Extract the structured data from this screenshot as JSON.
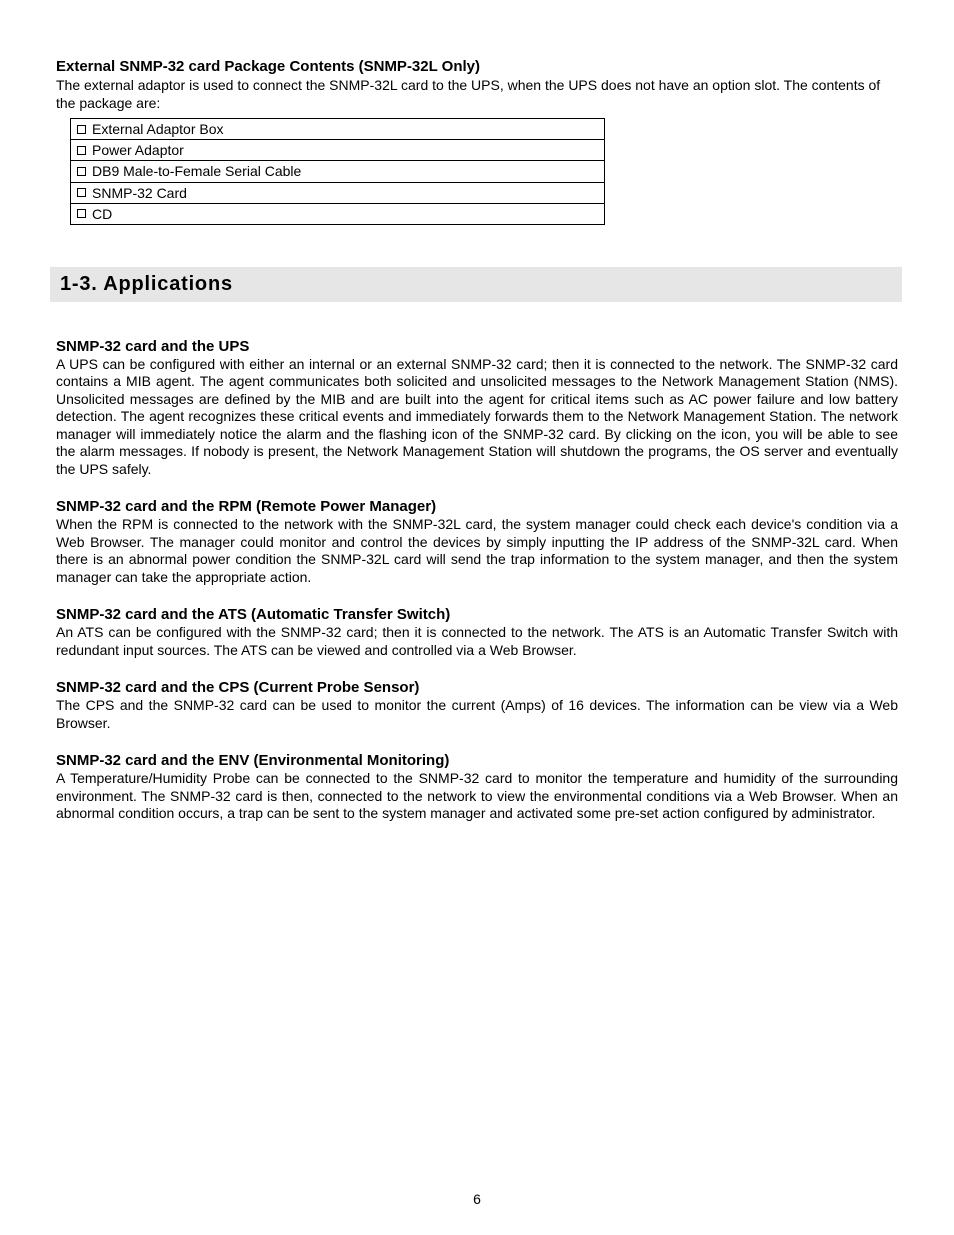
{
  "pageNumber": "6",
  "top": {
    "heading": "External SNMP-32 card Package Contents (SNMP-32L Only)",
    "intro": "The external adaptor is used to connect the SNMP-32L card to the UPS, when the UPS does not have an option slot.  The contents of the package are:",
    "items": [
      "External Adaptor Box",
      "Power Adaptor",
      "DB9 Male-to-Female Serial Cable",
      "SNMP-32 Card",
      "CD"
    ]
  },
  "sectionBar": "1-3.  Applications",
  "sections": [
    {
      "heading": "SNMP-32 card and the UPS",
      "body": "A UPS can be configured with either an internal or an external SNMP-32 card; then it is connected to the network.  The SNMP-32 card contains a MIB agent.  The agent communicates both solicited and unsolicited messages to the Network Management Station (NMS).  Unsolicited messages are defined by the MIB and are built into the agent for critical items such as AC power failure and low battery detection.  The agent recognizes these critical events and immediately forwards them to the Network Management Station.  The network manager will immediately notice the alarm and the flashing icon of the SNMP-32 card.  By clicking on the icon, you will be able to see the alarm messages.  If nobody is present, the Network Management Station will shutdown the programs, the OS server and eventually the UPS safely."
    },
    {
      "heading": "SNMP-32 card and the RPM (Remote Power Manager)",
      "body": "When the RPM is connected to the network with the SNMP-32L card, the system manager could check each device's condition via a Web Browser.  The manager could monitor and control the devices by simply inputting the IP address of the SNMP-32L card.  When there is an abnormal power condition the SNMP-32L card will send the trap information to the system manager, and then the system manager can take the appropriate action."
    },
    {
      "heading": "SNMP-32 card and the ATS (Automatic Transfer Switch)",
      "body": "An ATS can be configured with the SNMP-32 card; then it is connected to the network.  The ATS is an Automatic Transfer Switch with redundant input sources.  The ATS can be viewed and controlled via a Web Browser."
    },
    {
      "heading": "SNMP-32 card and the CPS (Current Probe Sensor)",
      "body": "The CPS and the SNMP-32 card can be used to monitor the current (Amps) of 16 devices.  The information can be view via a Web Browser."
    },
    {
      "heading": "SNMP-32 card and the ENV (Environmental Monitoring)",
      "body": "A Temperature/Humidity Probe can be connected to the SNMP-32 card to monitor the temperature and humidity of the surrounding environment.  The SNMP-32 card is then, connected to the network to view the environmental conditions via a Web Browser.  When an abnormal condition occurs, a trap can be sent to the system manager and activated some pre-set action configured by administrator."
    }
  ]
}
